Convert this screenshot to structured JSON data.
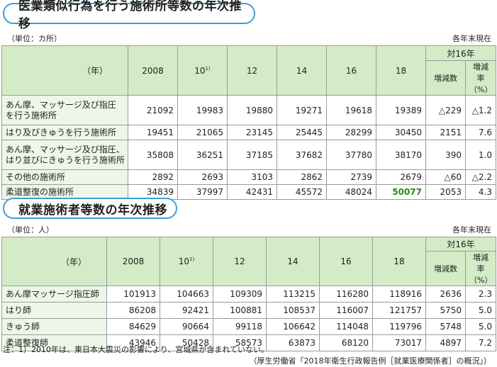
{
  "section1": {
    "title": "医業類似行為を行う施術所等数の年次推移",
    "unit": "（単位：カ所）",
    "as_of": "各年末現在",
    "corner": "（年）",
    "years": [
      "2008",
      "10",
      "12",
      "14",
      "16",
      "18"
    ],
    "year_note": "1)",
    "vs_header": "対16年",
    "sub_headers": [
      "増減数",
      "増減率（%）"
    ],
    "rows": [
      {
        "label": "あん摩、マッサージ及び指圧を行う施術所",
        "label_lines": [
          "あん摩、マッサージ及び指圧",
          "を行う施術所"
        ],
        "values": [
          "21092",
          "19983",
          "19880",
          "19271",
          "19618",
          "19389"
        ],
        "change": "△229",
        "rate": "△1.2"
      },
      {
        "label": "はり及びきゅうを行う施術所",
        "label_lines": [
          "はり及びきゅうを行う施術所"
        ],
        "values": [
          "19451",
          "21065",
          "23145",
          "25445",
          "28299",
          "30450"
        ],
        "change": "2151",
        "rate": "7.6"
      },
      {
        "label": "あん摩、マッサージ及び指圧、はり並びにきゅうを行う施術所",
        "label_lines": [
          "あん摩、マッサージ及び指圧、",
          "はり並びにきゅうを行う施術所"
        ],
        "values": [
          "35808",
          "36251",
          "37185",
          "37682",
          "37780",
          "38170"
        ],
        "change": "390",
        "rate": "1.0"
      },
      {
        "label": "その他の施術所",
        "label_lines": [
          "その他の施術所"
        ],
        "values": [
          "2892",
          "2693",
          "3103",
          "2862",
          "2739",
          "2679"
        ],
        "change": "△60",
        "rate": "△2.2"
      },
      {
        "label": "柔道整復の施術所",
        "label_lines": [
          "柔道整復の施術所"
        ],
        "values": [
          "34839",
          "37997",
          "42431",
          "45572",
          "48024",
          "50077"
        ],
        "change": "2053",
        "rate": "4.3",
        "highlight_index": 5
      }
    ]
  },
  "section2": {
    "title": "就業施術者等数の年次推移",
    "unit": "（単位：人）",
    "as_of": "各年末現在",
    "corner": "（年）",
    "years": [
      "2008",
      "10",
      "12",
      "14",
      "16",
      "18"
    ],
    "year_note": "1)",
    "vs_header": "対16年",
    "sub_headers": [
      "増減数",
      "増減率（%）"
    ],
    "rows": [
      {
        "label": "あん摩マッサージ指圧師",
        "values": [
          "101913",
          "104663",
          "109309",
          "113215",
          "116280",
          "118916"
        ],
        "change": "2636",
        "rate": "2.3"
      },
      {
        "label": "はり師",
        "values": [
          "86208",
          "92421",
          "100881",
          "108537",
          "116007",
          "121757"
        ],
        "change": "5750",
        "rate": "5.0"
      },
      {
        "label": "きゅう師",
        "values": [
          "84629",
          "90664",
          "99118",
          "106642",
          "114048",
          "119796"
        ],
        "change": "5748",
        "rate": "5.0"
      },
      {
        "label": "柔道整復師",
        "values": [
          "43946",
          "50428",
          "58573",
          "63873",
          "68120",
          "73017"
        ],
        "change": "4897",
        "rate": "7.2"
      }
    ]
  },
  "footnote": "注：1）2010年は、東日本大震災の影響により、宮城県が含まれていない。",
  "source": "（厚生労働省「2018年衛生行政報告例［就業医療関係者］の概況」）",
  "colors": {
    "accent": "#3d9fd1",
    "header_bg": "#d4ebc7",
    "label_bg": "#eef6e8",
    "highlight": "#2a8a1a"
  }
}
